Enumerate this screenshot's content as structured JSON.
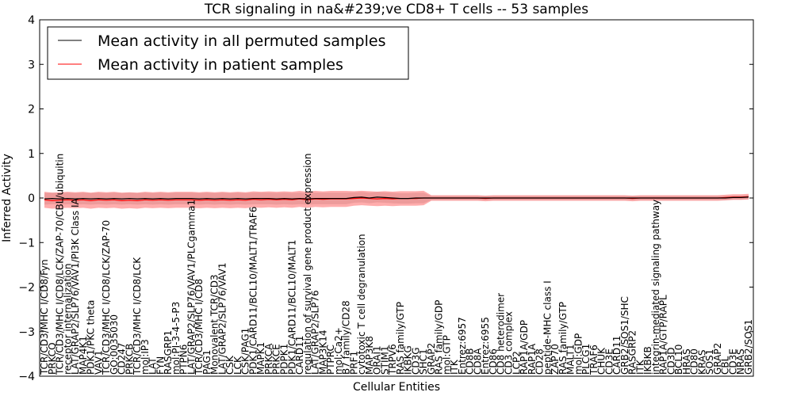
{
  "chart_data": {
    "type": "line",
    "title": "TCR signaling in na&#239;ve CD8+ T cells -- 53 samples",
    "xlabel": "Cellular Entities",
    "ylabel": "Inferred Activity",
    "ylim": [
      -4,
      4
    ],
    "yticks": [
      -4,
      -3,
      -2,
      -1,
      0,
      1,
      2,
      3,
      4
    ],
    "legend_position": "top-left",
    "x": [
      "TCR/CD3/MHC I/CD8/Fyn",
      "PRKCQ",
      "TCR/CD3/MHC I/CD8/LCK/ZAP-70/CBL/ubiquitin",
      "receptor internalization",
      "LAT/GRAP2/SLP76/VAV1/PI3K Class IA",
      "MAP4K1",
      "PDK1/PKC theta",
      "VAV1",
      "TCR/CD3/MHC I/CD8/LCK/ZAP-70",
      "GO:0035030",
      "CD247",
      "PRKCB",
      "TCR/CD3/MHC I/CD8/LCK",
      "mol:IP3",
      "LAT",
      "FYN",
      "RASGRP1",
      "mol:PI-3-4-5-P3",
      "PTPN6",
      "LAT/GRAP2/SLP76/VAV1/PLCgamma1",
      "TCR/CD3/MHC I/CD8",
      "PAG1",
      "Monovalent TCR/CD3",
      "LAT/GRAP2/SLP76/VAV1",
      "CSK",
      "LCK",
      "CSK/PAG1",
      "PDK1/CARD11/BCL10/MALT1/TRAF6",
      "MAPK1",
      "PRKCA",
      "PRKCE",
      "PDPK1",
      "PDK1/CARD11/BCL10/MALT1",
      "CARD11",
      "regulation of survival gene product expression",
      "LAT/GRAP2/SLP76",
      "MAP3K14",
      "PTPRC",
      "mol:Ca2+",
      "B7 family/CD28",
      "PRF1",
      "cytotoxic T cell degranulation",
      "MAP3K8",
      "ORAI1",
      "STIM1",
      "TRPV6",
      "RAS family/GTP",
      "IKBKG",
      "CD3G",
      "SHC1",
      "GRAP2",
      "RAS family/GDP",
      "mol:GTP",
      "ITK",
      "Entrez:6957",
      "CD8B",
      "CD8A",
      "Entrez:6955",
      "CD86",
      "CD8 heterodimer",
      "CD3 complex",
      "LCP2",
      "RAP1A/GDP",
      "RAP1A",
      "CD28",
      "peptide-MHC class I",
      "ZAP70",
      "RAS family/GTP",
      "MALT1",
      "mol:GDP",
      "PLCG1",
      "TRAF6",
      "CHUK",
      "CD3E",
      "CARD11",
      "GRB2/SOS1/SHC",
      "RASGRP2",
      "ITK",
      "IKBKB",
      "integrin-mediated signaling pathway",
      "RAP1A/GTP/RAPL",
      "CD3D",
      "BCL10",
      "HRAS",
      "CD80",
      "KRAS",
      "SOS1",
      "GRAP2",
      "CBL",
      "CD3E",
      "NRAS",
      "GRB2/SOS1"
    ],
    "series": [
      {
        "name": "Mean activity in all permuted samples",
        "color": "#000000",
        "values": [
          -0.02,
          -0.01,
          -0.02,
          -0.01,
          -0.02,
          -0.01,
          -0.02,
          -0.01,
          -0.02,
          -0.01,
          -0.02,
          -0.01,
          -0.02,
          -0.01,
          -0.02,
          -0.01,
          -0.02,
          -0.01,
          -0.01,
          -0.01,
          -0.02,
          -0.01,
          -0.02,
          -0.01,
          -0.02,
          -0.01,
          -0.02,
          -0.01,
          -0.01,
          -0.01,
          -0.02,
          -0.01,
          -0.02,
          -0.01,
          -0.02,
          -0.01,
          -0.01,
          -0.01,
          -0.01,
          -0.01,
          0.01,
          0.02,
          0.0,
          0.02,
          0.01,
          0.0,
          -0.01,
          -0.01,
          0.0,
          0.0,
          0.0,
          0.0,
          0.0,
          0.0,
          0.0,
          0.0,
          0.0,
          0.0,
          0.0,
          0.0,
          0.0,
          0.0,
          0.0,
          0.0,
          0.0,
          0.0,
          0.0,
          0.0,
          0.0,
          0.0,
          0.0,
          0.0,
          0.0,
          0.0,
          0.0,
          0.0,
          0.0,
          0.0,
          0.0,
          0.0,
          0.0,
          0.0,
          0.0,
          0.0,
          0.0,
          0.0,
          0.0,
          0.0,
          0.0,
          0.01,
          0.01,
          0.02
        ],
        "band": 0.13
      },
      {
        "name": "Mean activity in patient samples",
        "color": "#ff0000",
        "values": [
          -0.04,
          -0.06,
          -0.05,
          -0.04,
          -0.05,
          -0.04,
          -0.06,
          -0.04,
          -0.05,
          -0.04,
          -0.06,
          -0.05,
          -0.06,
          -0.04,
          -0.05,
          -0.04,
          -0.05,
          -0.04,
          -0.04,
          -0.04,
          -0.05,
          -0.04,
          -0.05,
          -0.04,
          -0.05,
          -0.04,
          -0.05,
          -0.03,
          -0.04,
          -0.03,
          -0.04,
          -0.03,
          -0.04,
          -0.02,
          -0.04,
          -0.02,
          -0.03,
          -0.02,
          -0.02,
          -0.02,
          -0.01,
          0.0,
          -0.01,
          -0.02,
          -0.01,
          -0.02,
          -0.01,
          -0.01,
          -0.01,
          0.0,
          0.0,
          0.0,
          0.0,
          0.0,
          0.0,
          0.0,
          0.0,
          -0.01,
          0.0,
          0.0,
          0.0,
          0.0,
          0.0,
          0.0,
          0.0,
          0.0,
          0.0,
          0.0,
          0.0,
          0.0,
          0.0,
          0.0,
          0.0,
          0.0,
          0.0,
          0.0,
          -0.01,
          0.0,
          0.0,
          0.0,
          0.0,
          0.0,
          0.0,
          0.0,
          0.0,
          0.0,
          0.0,
          0.0,
          0.01,
          0.02,
          0.02,
          0.03
        ],
        "band": 0.18
      }
    ]
  }
}
